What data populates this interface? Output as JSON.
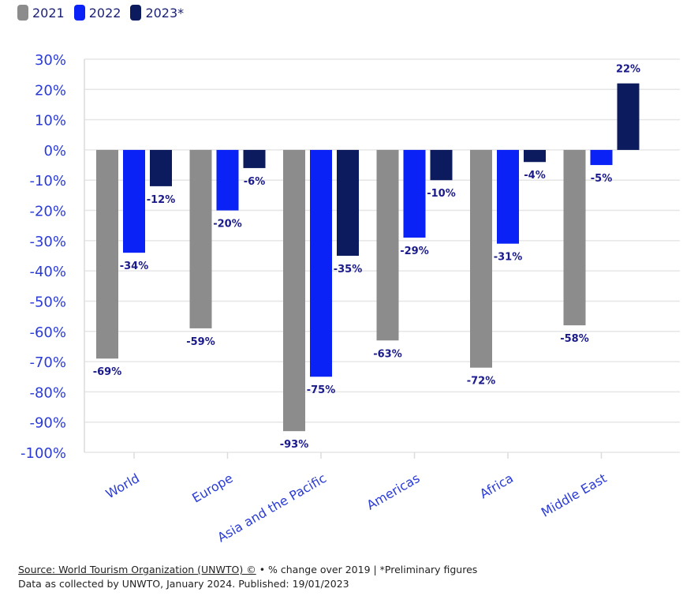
{
  "legend": [
    {
      "label": "2021",
      "color": "#8c8c8c"
    },
    {
      "label": "2022",
      "color": "#0a22f5"
    },
    {
      "label": "2023*",
      "color": "#0c1a5e"
    }
  ],
  "footer": {
    "source": "Source: World Tourism Organization (UNWTO) ©",
    "note": " • % change over 2019 | *Preliminary figures",
    "line2": "Data as collected by UNWTO, January 2024. Published: 19/01/2023"
  },
  "chart_data": {
    "type": "bar",
    "categories": [
      "World",
      "Europe",
      "Asia and the Pacific",
      "Americas",
      "Africa",
      "Middle East"
    ],
    "series": [
      {
        "name": "2021",
        "color": "#8c8c8c",
        "values": [
          -69,
          -59,
          -93,
          -63,
          -72,
          -58
        ]
      },
      {
        "name": "2022",
        "color": "#0a22f5",
        "values": [
          -34,
          -20,
          -75,
          -29,
          -31,
          -5
        ]
      },
      {
        "name": "2023*",
        "color": "#0c1a5e",
        "values": [
          -12,
          -6,
          -35,
          -10,
          -4,
          22
        ]
      }
    ],
    "data_labels": [
      [
        "-69%",
        "-59%",
        "-93%",
        "-63%",
        "-72%",
        "-58%"
      ],
      [
        "-34%",
        "-20%",
        "-75%",
        "-29%",
        "-31%",
        "-5%"
      ],
      [
        "-12%",
        "-6%",
        "-35%",
        "-10%",
        "-4%",
        "22%"
      ]
    ],
    "yticks": [
      "30%",
      "20%",
      "10%",
      "0%",
      "-10%",
      "-20%",
      "-30%",
      "-40%",
      "-50%",
      "-60%",
      "-70%",
      "-80%",
      "-90%",
      "-100%"
    ],
    "ylim": [
      -100,
      30
    ],
    "grid": true,
    "legend_position": "top-left",
    "tick_color": "#2b3bd8",
    "label_color": "#1a1a8c"
  }
}
